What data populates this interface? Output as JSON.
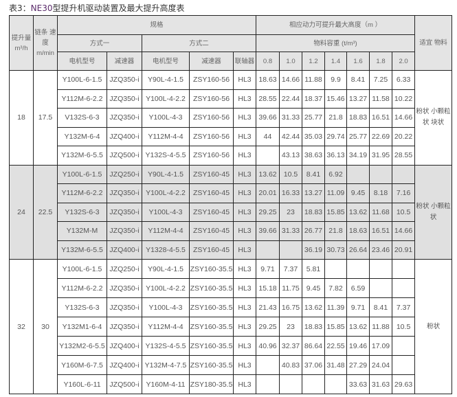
{
  "title": {
    "prefix": "表3：",
    "model": "NE30",
    "suffix": "型提升机驱动装置及最大提升高度表"
  },
  "header": {
    "capacity": "提升量 m³/h",
    "chain_speed": "链条 速度 m/min",
    "spec": "规格",
    "max_height": "相应动力可提升最大高度（m ）",
    "mode1": "方式一",
    "mode2": "方式二",
    "density": "物料容重 (t/m³)",
    "suitable_material": "适宜 物料",
    "motor_model_1": "电机型号",
    "reducer_1": "减速器",
    "motor_model_2": "电机型号",
    "reducer_2": "减速器",
    "coupling": "联轴器",
    "densities": [
      "0.8",
      "1.0",
      "1.2",
      "1.4",
      "1.6",
      "1.8",
      "2.0"
    ]
  },
  "groups": [
    {
      "capacity": "18",
      "speed": "17.5",
      "material": "粉状 小颗粒状 块状",
      "rows": [
        {
          "m1": "Y100L-6-1.5",
          "r1": "JZQ350-i",
          "m2": "Y90L-4-1.5",
          "r2": "ZSY160-56",
          "c": "HL3",
          "h": [
            "18.63",
            "14.66",
            "11.88",
            "9.9",
            "8.41",
            "7.25",
            "6.33"
          ]
        },
        {
          "m1": "Y112M-6-2.2",
          "r1": "JZQ350-i",
          "m2": "Y100L-4-2.2",
          "r2": "ZSY160-56",
          "c": "HL3",
          "h": [
            "28.55",
            "22.44",
            "18.37",
            "15.46",
            "13.27",
            "11.58",
            "10.22"
          ]
        },
        {
          "m1": "V132S-6-3",
          "r1": "JZQ350-i",
          "m2": "Y100L-4-3",
          "r2": "ZSY160-56",
          "c": "HL3",
          "h": [
            "39.66",
            "31.33",
            "25.77",
            "21.8",
            "18.83",
            "16.51",
            "14.66"
          ]
        },
        {
          "m1": "Y132M-6-4",
          "r1": "JZQ400-i",
          "m2": "Y112M-4-4",
          "r2": "ZSY160-56",
          "c": "HL3",
          "h": [
            "44",
            "42.44",
            "35.03",
            "29.74",
            "25.77",
            "22.69",
            "20.22"
          ]
        },
        {
          "m1": "Y132M-6-5.5",
          "r1": "JZQ500-i",
          "m2": "Y132S-4-5.5",
          "r2": "ZSY160-56",
          "c": "HL3",
          "h": [
            "",
            "43.13",
            "38.63",
            "36.13",
            "34.19",
            "31.95",
            "28.55"
          ]
        }
      ]
    },
    {
      "capacity": "24",
      "speed": "22.5",
      "material": "粉状 小颗粒状",
      "rows": [
        {
          "m1": "Y100L-6-1.5",
          "r1": "JZQ250-i",
          "m2": "Y90L-4-1.5",
          "r2": "ZSY160-45",
          "c": "HL3",
          "h": [
            "13.62",
            "10.5",
            "8.41",
            "6.92",
            "",
            "",
            ""
          ]
        },
        {
          "m1": "Y112M-6-2.2",
          "r1": "JZQ350-i",
          "m2": "Y100L-4-2.2",
          "r2": "ZSY160-45",
          "c": "HL3",
          "h": [
            "20.01",
            "16.33",
            "13.27",
            "11.09",
            "9.45",
            "8.18",
            "7.16"
          ]
        },
        {
          "m1": "Y132S-6-3",
          "r1": "JZQ350-i",
          "m2": "Y100L-4-3",
          "r2": "ZSY160-45",
          "c": "HL3",
          "h": [
            "29.25",
            "23",
            "18.83",
            "15.85",
            "13.62",
            "11.68",
            "10.5"
          ]
        },
        {
          "m1": "Y132M-M",
          "r1": "JZQ350-i",
          "m2": "Y112M-4-4",
          "r2": "ZSY160-45",
          "c": "HL3",
          "h": [
            "39.66",
            "31.33",
            "26.77",
            "21.8",
            "18.63",
            "16.51",
            "14.66"
          ]
        },
        {
          "m1": "Y132M-6-5.5",
          "r1": "JZQ400-i",
          "m2": "Y1328-4-5.5",
          "r2": "ZSY160-45",
          "c": "HL3",
          "h": [
            "",
            "",
            "36.19",
            "30.73",
            "26.64",
            "23.46",
            "20.91"
          ]
        }
      ]
    },
    {
      "capacity": "32",
      "speed": "30",
      "material": "粉状",
      "rows": [
        {
          "m1": "Y100L-6-1.5",
          "r1": "JZQ250-i",
          "m2": "Y90L-4-1.5",
          "r2": "ZSY160-35.5",
          "c": "HL3",
          "h": [
            "9.71",
            "7.37",
            "5.81",
            "",
            "",
            "",
            ""
          ]
        },
        {
          "m1": "Y112M-6-2.2",
          "r1": "JZQ350-i",
          "m2": "Y100L-4-2.2",
          "r2": "ZSY160-35.5",
          "c": "HL3",
          "h": [
            "15.18",
            "11.75",
            "9.45",
            "7.82",
            "6.59",
            "",
            ""
          ]
        },
        {
          "m1": "Y132S-6-3",
          "r1": "JZQ350-i",
          "m2": "Y100L-4-3",
          "r2": "ZSY160-35.5",
          "c": "HL3",
          "h": [
            "21.43",
            "16.75",
            "13.62",
            "11.39",
            "9.71",
            "8.41",
            "7.37"
          ]
        },
        {
          "m1": "Y132M1-6-4",
          "r1": "JZQ350-i",
          "m2": "Y112M-4-4",
          "r2": "ZSY160-35.5",
          "c": "HL3",
          "h": [
            "29.25",
            "23",
            "18.83",
            "15.85",
            "13.62",
            "11.88",
            "10.5"
          ]
        },
        {
          "m1": "Y132M2-6-5.5",
          "r1": "JZQ400-i",
          "m2": "Y132S-4-5.5",
          "r2": "ZSY160-35.5",
          "c": "HL3",
          "h": [
            "40.96",
            "32.37",
            "86.64",
            "22.55",
            "19.46",
            "17.09",
            ""
          ]
        },
        {
          "m1": "Y160M-6-7.5",
          "r1": "JZQ400-i",
          "m2": "Y132M-4-7.5",
          "r2": "ZSY160-35.5",
          "c": "HL3",
          "h": [
            "",
            "40.83",
            "37.06",
            "31.48",
            "27.29",
            "24.04",
            ""
          ]
        },
        {
          "m1": "Y160L-6-11",
          "r1": "JZQ500-i",
          "m2": "Y160M-4-11",
          "r2": "ZSY180-35.5",
          "c": "HL3",
          "h": [
            "",
            "",
            "",
            "",
            "33.63",
            "31.63",
            "29.63"
          ]
        }
      ]
    }
  ]
}
